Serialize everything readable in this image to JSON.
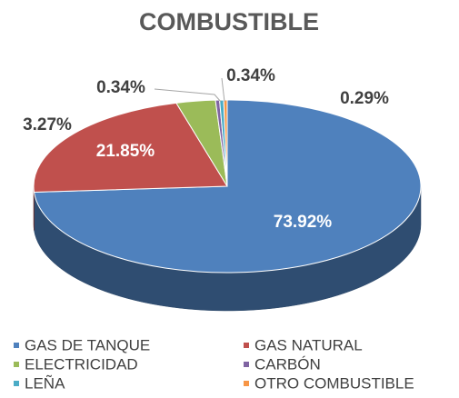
{
  "chart_data": {
    "type": "pie",
    "title": "COMBUSTIBLE",
    "categories": [
      "GAS DE TANQUE",
      "GAS NATURAL",
      "ELECTRICIDAD",
      "CARBÓN",
      "LEÑA",
      "OTRO COMBUSTIBLE"
    ],
    "values": [
      73.92,
      21.85,
      3.27,
      0.34,
      0.34,
      0.29
    ],
    "value_labels": [
      "73.92%",
      "21.85%",
      "3.27%",
      "0.34%",
      "0.34%",
      "0.29%"
    ],
    "colors": [
      "#4f81bd",
      "#c0504d",
      "#9bbb59",
      "#8064a2",
      "#4bacc6",
      "#f79646"
    ],
    "legend": "bottom"
  }
}
